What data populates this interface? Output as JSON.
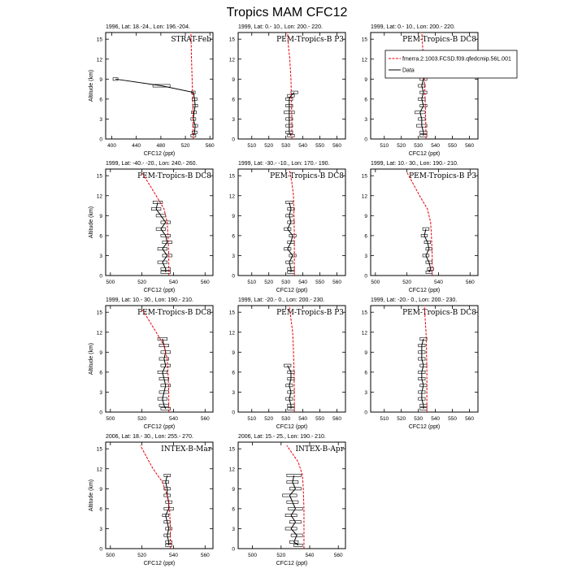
{
  "figure": {
    "title": "Tropics MAM CFC12"
  },
  "legend": {
    "model_label": "fmerra.2.1003.FCSD.f09.qfedcmip.56L.001",
    "data_label": "Data",
    "model_color": "#e8000b",
    "data_color": "#000000"
  },
  "chart_data": [
    {
      "type": "line",
      "title": "1996, Lat: 18.-24., Lon: 196.-204.",
      "campaign": "STRAT-Feb",
      "xlabel": "CFC12 (ppt)",
      "ylabel": "Altitude (km)",
      "xlim": [
        390,
        565
      ],
      "xticks": [
        400,
        440,
        480,
        520,
        560
      ],
      "ylim": [
        0,
        16
      ],
      "yticks": [
        0,
        3,
        6,
        9,
        12,
        15
      ],
      "model": {
        "x": [
          533,
          532.5,
          532,
          531,
          530,
          529.5,
          529
        ],
        "y": [
          0,
          3,
          6,
          9,
          12,
          14,
          16
        ]
      },
      "obs": [
        {
          "y": 9.0,
          "x": 406,
          "err": 4
        },
        {
          "y": 8.0,
          "x": 481,
          "err": 14
        },
        {
          "y": 7.0,
          "x": 533,
          "err": 3
        },
        {
          "y": 6.0,
          "x": 535,
          "err": 4
        },
        {
          "y": 5.0,
          "x": 536,
          "err": 4
        },
        {
          "y": 4.0,
          "x": 534,
          "err": 4
        },
        {
          "y": 3.0,
          "x": 533,
          "err": 4
        },
        {
          "y": 2.0,
          "x": 536,
          "err": 4
        },
        {
          "y": 1.0,
          "x": 535,
          "err": 4
        },
        {
          "y": 0.5,
          "x": 533,
          "err": 4
        }
      ]
    },
    {
      "type": "line",
      "title": "1999, Lat: 0.- 10., Lon: 200.- 220.",
      "campaign": "PEM-Tropics-B P3",
      "xlabel": "",
      "ylabel": "",
      "xlim": [
        502,
        565
      ],
      "xticks": [
        510,
        520,
        530,
        540,
        550,
        560
      ],
      "ylim": [
        0,
        16
      ],
      "yticks": [
        0,
        3,
        6,
        9,
        12,
        15
      ],
      "model": {
        "x": [
          533.5,
          533.5,
          533.3,
          533,
          532.3,
          531.5,
          531
        ],
        "y": [
          0,
          3,
          6,
          9,
          12,
          14,
          16
        ]
      },
      "obs": [
        {
          "y": 7.0,
          "x": 535,
          "err": 2
        },
        {
          "y": 6.5,
          "x": 533,
          "err": 2
        },
        {
          "y": 6.0,
          "x": 532,
          "err": 2
        },
        {
          "y": 5.0,
          "x": 532,
          "err": 2
        },
        {
          "y": 4.0,
          "x": 532,
          "err": 3
        },
        {
          "y": 3.0,
          "x": 532,
          "err": 2
        },
        {
          "y": 2.0,
          "x": 532,
          "err": 2
        },
        {
          "y": 1.0,
          "x": 532,
          "err": 2
        },
        {
          "y": 0.5,
          "x": 533,
          "err": 2
        }
      ]
    },
    {
      "type": "line",
      "title": "1999, Lat: 0.- 10., Lon: 200.- 220.",
      "campaign": "PEM-Tropics-B DC8",
      "xlabel": "CFC12 (ppt)",
      "ylabel": "",
      "xlim": [
        502,
        565
      ],
      "xticks": [
        510,
        520,
        530,
        540,
        550,
        560
      ],
      "ylim": [
        0,
        16
      ],
      "yticks": [
        0,
        3,
        6,
        9,
        12,
        15
      ],
      "model": {
        "x": [
          534.5,
          534.3,
          534,
          533.5,
          533,
          532.5,
          532
        ],
        "y": [
          0,
          3,
          6,
          9,
          12,
          14,
          16
        ]
      },
      "obs": [
        {
          "y": 11.0,
          "x": 534,
          "err": 2
        },
        {
          "y": 10.0,
          "x": 533,
          "err": 2
        },
        {
          "y": 9.0,
          "x": 533,
          "err": 2
        },
        {
          "y": 8.0,
          "x": 532,
          "err": 2
        },
        {
          "y": 7.0,
          "x": 533,
          "err": 2
        },
        {
          "y": 6.0,
          "x": 532,
          "err": 2
        },
        {
          "y": 5.0,
          "x": 533,
          "err": 2
        },
        {
          "y": 4.0,
          "x": 531,
          "err": 3
        },
        {
          "y": 3.0,
          "x": 532,
          "err": 2
        },
        {
          "y": 2.0,
          "x": 532,
          "err": 3
        },
        {
          "y": 1.0,
          "x": 533,
          "err": 2
        },
        {
          "y": 0.5,
          "x": 533,
          "err": 2
        }
      ]
    },
    {
      "type": "line",
      "title": "1999, Lat: -40.- -20., Lon: 240.- 260.",
      "campaign": "PEM-Tropics-B DC8",
      "xlabel": "CFC12 (ppt)",
      "ylabel": "Altitude (km)",
      "xlim": [
        497,
        565
      ],
      "xticks": [
        500,
        520,
        540,
        560
      ],
      "ylim": [
        0,
        16
      ],
      "yticks": [
        0,
        3,
        6,
        9,
        12,
        15
      ],
      "model": {
        "x": [
          537,
          537,
          536.5,
          536,
          534,
          529,
          520
        ],
        "y": [
          0,
          3,
          6,
          8,
          10,
          12,
          15.5
        ]
      },
      "obs": [
        {
          "y": 11.0,
          "x": 530,
          "err": 3
        },
        {
          "y": 10.0,
          "x": 529,
          "err": 3
        },
        {
          "y": 9.0,
          "x": 532,
          "err": 3
        },
        {
          "y": 8.0,
          "x": 535,
          "err": 3
        },
        {
          "y": 7.0,
          "x": 532,
          "err": 3
        },
        {
          "y": 6.0,
          "x": 535,
          "err": 3
        },
        {
          "y": 5.0,
          "x": 536,
          "err": 3
        },
        {
          "y": 4.0,
          "x": 533,
          "err": 3
        },
        {
          "y": 3.0,
          "x": 536,
          "err": 3
        },
        {
          "y": 2.0,
          "x": 533,
          "err": 3
        },
        {
          "y": 1.0,
          "x": 535,
          "err": 3
        },
        {
          "y": 0.5,
          "x": 535,
          "err": 3
        }
      ]
    },
    {
      "type": "line",
      "title": "1999, Lat: -30.- -10., Lon: 170.- 190.",
      "campaign": "PEM-Tropics-B DC8",
      "xlabel": "CFC12 (ppt)",
      "ylabel": "",
      "xlim": [
        502,
        565
      ],
      "xticks": [
        510,
        520,
        530,
        540,
        550,
        560
      ],
      "ylim": [
        0,
        16
      ],
      "yticks": [
        0,
        3,
        6,
        9,
        12,
        15
      ],
      "model": {
        "x": [
          535,
          535,
          535,
          534.8,
          534.5,
          533.5,
          532
        ],
        "y": [
          0,
          3,
          6,
          9,
          12,
          14,
          16
        ]
      },
      "obs": [
        {
          "y": 11.0,
          "x": 532,
          "err": 2
        },
        {
          "y": 10.0,
          "x": 533,
          "err": 2
        },
        {
          "y": 9.0,
          "x": 532,
          "err": 2
        },
        {
          "y": 8.0,
          "x": 533,
          "err": 2
        },
        {
          "y": 7.0,
          "x": 531,
          "err": 2
        },
        {
          "y": 6.0,
          "x": 534,
          "err": 2
        },
        {
          "y": 5.0,
          "x": 533,
          "err": 2
        },
        {
          "y": 4.0,
          "x": 531,
          "err": 2
        },
        {
          "y": 3.0,
          "x": 534,
          "err": 2
        },
        {
          "y": 2.0,
          "x": 532,
          "err": 2
        },
        {
          "y": 1.0,
          "x": 533,
          "err": 2
        },
        {
          "y": 0.5,
          "x": 533,
          "err": 2
        }
      ]
    },
    {
      "type": "line",
      "title": "1999, Lat: 10.- 30., Lon: 190.- 210.",
      "campaign": "PEM-Tropics-B P3",
      "xlabel": "CFC12 (ppt)",
      "ylabel": "",
      "xlim": [
        497,
        565
      ],
      "xticks": [
        500,
        520,
        540,
        560
      ],
      "ylim": [
        0,
        16
      ],
      "yticks": [
        0,
        3,
        6,
        9,
        12,
        15
      ],
      "model": {
        "x": [
          536,
          536,
          535.5,
          535,
          533,
          528,
          520
        ],
        "y": [
          0,
          3,
          6,
          8,
          10,
          12,
          15.5
        ]
      },
      "obs": [
        {
          "y": 7.0,
          "x": 532,
          "err": 2
        },
        {
          "y": 6.0,
          "x": 531,
          "err": 2
        },
        {
          "y": 5.0,
          "x": 533,
          "err": 2
        },
        {
          "y": 4.0,
          "x": 534,
          "err": 2
        },
        {
          "y": 3.0,
          "x": 532,
          "err": 2
        },
        {
          "y": 2.0,
          "x": 534,
          "err": 2
        },
        {
          "y": 1.0,
          "x": 535,
          "err": 2
        },
        {
          "y": 0.5,
          "x": 534,
          "err": 2
        }
      ]
    },
    {
      "type": "line",
      "title": "1999, Lat: 10.- 30., Lon: 190.- 210.",
      "campaign": "PEM-Tropics-B DC8",
      "xlabel": "CFC12 (ppt)",
      "ylabel": "Altitude (km)",
      "xlim": [
        497,
        565
      ],
      "xticks": [
        500,
        520,
        540,
        560
      ],
      "ylim": [
        0,
        16
      ],
      "yticks": [
        0,
        3,
        6,
        9,
        12,
        15
      ],
      "model": {
        "x": [
          537,
          537,
          536.5,
          536,
          534,
          529,
          520
        ],
        "y": [
          0,
          3,
          6,
          8,
          10,
          12,
          15.5
        ]
      },
      "obs": [
        {
          "y": 11.0,
          "x": 533,
          "err": 3
        },
        {
          "y": 10.0,
          "x": 534,
          "err": 3
        },
        {
          "y": 9.0,
          "x": 535,
          "err": 3
        },
        {
          "y": 8.0,
          "x": 534,
          "err": 3
        },
        {
          "y": 7.0,
          "x": 535,
          "err": 3
        },
        {
          "y": 6.0,
          "x": 533,
          "err": 3
        },
        {
          "y": 5.0,
          "x": 534,
          "err": 3
        },
        {
          "y": 4.0,
          "x": 535,
          "err": 3
        },
        {
          "y": 3.0,
          "x": 534,
          "err": 3
        },
        {
          "y": 2.0,
          "x": 533,
          "err": 3
        },
        {
          "y": 1.0,
          "x": 534,
          "err": 3
        },
        {
          "y": 0.5,
          "x": 535,
          "err": 3
        }
      ]
    },
    {
      "type": "line",
      "title": "1999, Lat: -20.- 0., Lon: 200.- 230.",
      "campaign": "PEM-Tropics-B P3",
      "xlabel": "CFC12 (ppt)",
      "ylabel": "",
      "xlim": [
        502,
        565
      ],
      "xticks": [
        510,
        520,
        530,
        540,
        550,
        560
      ],
      "ylim": [
        0,
        16
      ],
      "yticks": [
        0,
        3,
        6,
        9,
        12,
        15
      ],
      "model": {
        "x": [
          535,
          535,
          534.8,
          534.5,
          534,
          533,
          532
        ],
        "y": [
          0,
          3,
          6,
          9,
          12,
          14,
          16
        ]
      },
      "obs": [
        {
          "y": 7.0,
          "x": 531,
          "err": 2
        },
        {
          "y": 6.0,
          "x": 533,
          "err": 2
        },
        {
          "y": 5.0,
          "x": 533,
          "err": 2
        },
        {
          "y": 4.0,
          "x": 532,
          "err": 2
        },
        {
          "y": 3.0,
          "x": 533,
          "err": 2
        },
        {
          "y": 2.0,
          "x": 532,
          "err": 2
        },
        {
          "y": 1.0,
          "x": 533,
          "err": 2
        },
        {
          "y": 0.5,
          "x": 533,
          "err": 2
        }
      ]
    },
    {
      "type": "line",
      "title": "1999, Lat: -20.- 0., Lon: 200.- 230.",
      "campaign": "PEM-Tropics-B DC8",
      "xlabel": "CFC12 (ppt)",
      "ylabel": "",
      "xlim": [
        502,
        565
      ],
      "xticks": [
        510,
        520,
        530,
        540,
        550,
        560
      ],
      "ylim": [
        0,
        16
      ],
      "yticks": [
        0,
        3,
        6,
        9,
        12,
        15
      ],
      "model": {
        "x": [
          535,
          535,
          535,
          534.8,
          534.5,
          534,
          533.5
        ],
        "y": [
          0,
          3,
          6,
          9,
          12,
          14,
          16
        ]
      },
      "obs": [
        {
          "y": 11.0,
          "x": 533,
          "err": 2
        },
        {
          "y": 10.0,
          "x": 532,
          "err": 2
        },
        {
          "y": 9.0,
          "x": 532,
          "err": 2
        },
        {
          "y": 8.0,
          "x": 532,
          "err": 2
        },
        {
          "y": 7.0,
          "x": 533,
          "err": 2
        },
        {
          "y": 6.0,
          "x": 532,
          "err": 2
        },
        {
          "y": 5.0,
          "x": 532,
          "err": 2
        },
        {
          "y": 4.0,
          "x": 533,
          "err": 2
        },
        {
          "y": 3.0,
          "x": 532,
          "err": 2
        },
        {
          "y": 2.0,
          "x": 532,
          "err": 2
        },
        {
          "y": 1.0,
          "x": 533,
          "err": 2
        },
        {
          "y": 0.5,
          "x": 533,
          "err": 2
        }
      ]
    },
    {
      "type": "line",
      "title": "2006, Lat: 18.- 30., Lon: 255.- 270.",
      "campaign": "INTEX-B-Mar",
      "xlabel": "CFC12 (ppt)",
      "ylabel": "Altitude (km)",
      "xlim": [
        497,
        565
      ],
      "xticks": [
        500,
        520,
        540,
        560
      ],
      "ylim": [
        0,
        16
      ],
      "yticks": [
        0,
        3,
        6,
        9,
        12,
        15
      ],
      "model": {
        "x": [
          538,
          538,
          537.5,
          536,
          533,
          527,
          519
        ],
        "y": [
          0,
          3,
          6,
          8,
          10,
          12,
          15.5
        ]
      },
      "obs": [
        {
          "y": 11.0,
          "x": 536,
          "err": 2
        },
        {
          "y": 10.0,
          "x": 535,
          "err": 2
        },
        {
          "y": 9.0,
          "x": 536,
          "err": 2
        },
        {
          "y": 8.0,
          "x": 536,
          "err": 2
        },
        {
          "y": 7.0,
          "x": 537,
          "err": 2
        },
        {
          "y": 6.0,
          "x": 537,
          "err": 3
        },
        {
          "y": 5.0,
          "x": 535,
          "err": 2
        },
        {
          "y": 4.0,
          "x": 536,
          "err": 2
        },
        {
          "y": 3.0,
          "x": 537,
          "err": 2
        },
        {
          "y": 2.0,
          "x": 536,
          "err": 2
        },
        {
          "y": 1.0,
          "x": 537,
          "err": 2
        },
        {
          "y": 0.5,
          "x": 537,
          "err": 2
        }
      ]
    },
    {
      "type": "line",
      "title": "2006, Lat: 15.- 25., Lon: 190.- 210.",
      "campaign": "INTEX-B-Apr",
      "xlabel": "CFC12 (ppt)",
      "ylabel": "",
      "xlim": [
        490,
        565
      ],
      "xticks": [
        500,
        520,
        540,
        560
      ],
      "ylim": [
        0,
        16
      ],
      "yticks": [
        0,
        3,
        6,
        9,
        12,
        15
      ],
      "model": {
        "x": [
          536,
          536,
          536,
          535.5,
          535,
          532,
          524
        ],
        "y": [
          0,
          3,
          6,
          9,
          11,
          13,
          15.5
        ]
      },
      "obs": [
        {
          "y": 11.0,
          "x": 529,
          "err": 5
        },
        {
          "y": 10.0,
          "x": 528,
          "err": 4
        },
        {
          "y": 9.0,
          "x": 530,
          "err": 4
        },
        {
          "y": 8.0,
          "x": 526,
          "err": 5
        },
        {
          "y": 7.0,
          "x": 528,
          "err": 4
        },
        {
          "y": 6.0,
          "x": 530,
          "err": 5
        },
        {
          "y": 5.0,
          "x": 527,
          "err": 4
        },
        {
          "y": 4.0,
          "x": 530,
          "err": 4
        },
        {
          "y": 3.0,
          "x": 527,
          "err": 4
        },
        {
          "y": 2.0,
          "x": 531,
          "err": 4
        },
        {
          "y": 1.0,
          "x": 529,
          "err": 3
        },
        {
          "y": 0.5,
          "x": 532,
          "err": 3
        }
      ]
    }
  ]
}
